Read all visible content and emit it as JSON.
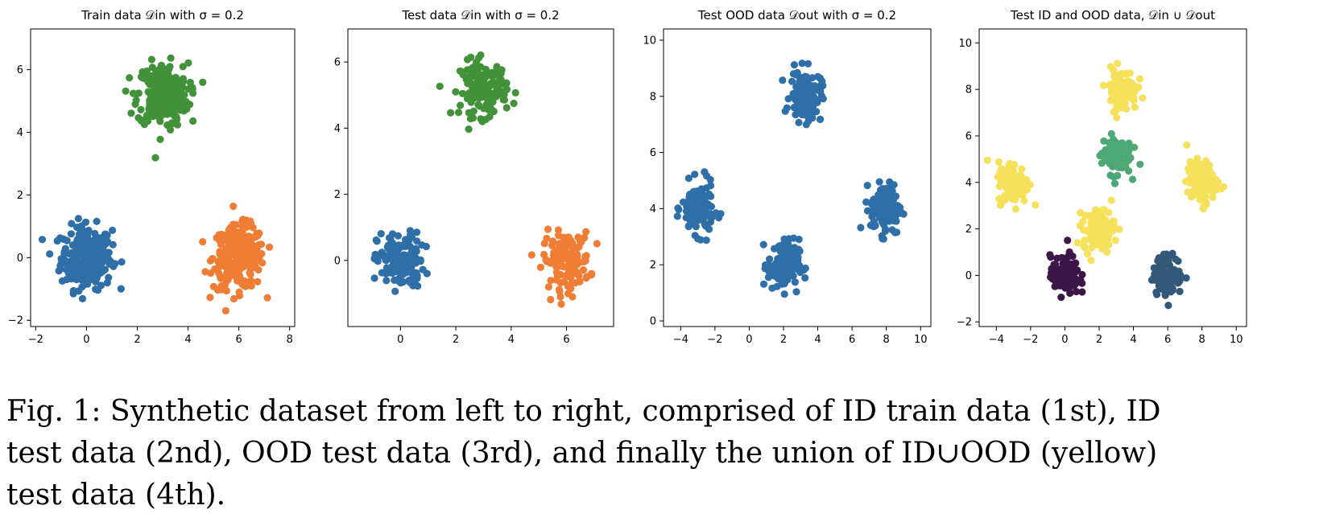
{
  "chart_data": [
    {
      "type": "scatter",
      "title": "Train data 𝒟in with σ = 0.2",
      "xlim": [
        -2.2,
        8.2
      ],
      "ylim": [
        -2.2,
        7.3
      ],
      "xticks": [
        -2,
        0,
        2,
        4,
        6,
        8
      ],
      "yticks": [
        -2,
        0,
        2,
        4,
        6
      ],
      "grid": false,
      "clusters": [
        {
          "cx": 0,
          "cy": 0,
          "color": "#2f6fa8",
          "n": 260,
          "sd": 0.5
        },
        {
          "cx": 6,
          "cy": 0,
          "color": "#ef7d35",
          "n": 260,
          "sd": 0.5
        },
        {
          "cx": 3,
          "cy": 5.2,
          "color": "#42923a",
          "n": 260,
          "sd": 0.5
        }
      ]
    },
    {
      "type": "scatter",
      "title": "Test data 𝒟in with σ = 0.2",
      "xlim": [
        -1.9,
        7.7
      ],
      "ylim": [
        -2.0,
        7.0
      ],
      "xticks": [
        0,
        2,
        4,
        6
      ],
      "yticks": [
        0,
        2,
        4,
        6
      ],
      "grid": false,
      "clusters": [
        {
          "cx": 0,
          "cy": 0,
          "color": "#2f6fa8",
          "n": 140,
          "sd": 0.42
        },
        {
          "cx": 6,
          "cy": 0,
          "color": "#ef7d35",
          "n": 140,
          "sd": 0.42
        },
        {
          "cx": 3,
          "cy": 5.2,
          "color": "#42923a",
          "n": 140,
          "sd": 0.42
        }
      ]
    },
    {
      "type": "scatter",
      "title": "Test OOD data 𝒟out with σ = 0.2",
      "xlim": [
        -5.0,
        10.6
      ],
      "ylim": [
        -0.2,
        10.4
      ],
      "xticks": [
        -4,
        -2,
        0,
        2,
        4,
        6,
        8,
        10
      ],
      "yticks": [
        0,
        2,
        4,
        6,
        8,
        10
      ],
      "grid": false,
      "clusters": [
        {
          "cx": -3,
          "cy": 4,
          "color": "#2f6fa8",
          "n": 130,
          "sd": 0.45
        },
        {
          "cx": 3.3,
          "cy": 8,
          "color": "#2f6fa8",
          "n": 130,
          "sd": 0.45
        },
        {
          "cx": 2,
          "cy": 2,
          "color": "#2f6fa8",
          "n": 130,
          "sd": 0.45
        },
        {
          "cx": 8,
          "cy": 4,
          "color": "#2f6fa8",
          "n": 130,
          "sd": 0.45
        }
      ]
    },
    {
      "type": "scatter",
      "title": "Test ID and OOD data, 𝒟in ∪ 𝒟out",
      "xlim": [
        -5.0,
        10.6
      ],
      "ylim": [
        -2.2,
        10.6
      ],
      "xticks": [
        -4,
        -2,
        0,
        2,
        4,
        6,
        8,
        10
      ],
      "yticks": [
        -2,
        0,
        2,
        4,
        6,
        8,
        10
      ],
      "grid": false,
      "clusters": [
        {
          "cx": -3,
          "cy": 4,
          "color": "#f7e05a",
          "n": 110,
          "sd": 0.45
        },
        {
          "cx": 3.3,
          "cy": 8,
          "color": "#f7e05a",
          "n": 110,
          "sd": 0.45
        },
        {
          "cx": 2,
          "cy": 2,
          "color": "#f7e05a",
          "n": 110,
          "sd": 0.45
        },
        {
          "cx": 8,
          "cy": 4,
          "color": "#f7e05a",
          "n": 110,
          "sd": 0.45
        },
        {
          "cx": 3,
          "cy": 5.2,
          "color": "#4ea876",
          "n": 110,
          "sd": 0.42
        },
        {
          "cx": 0,
          "cy": 0,
          "color": "#3b1647",
          "n": 110,
          "sd": 0.42
        },
        {
          "cx": 6,
          "cy": 0,
          "color": "#33597a",
          "n": 110,
          "sd": 0.42
        }
      ]
    }
  ],
  "caption": {
    "lines": [
      "Fig. 1: Synthetic dataset from left to right, comprised of ID train data (1st), ID",
      "test data (2nd), OOD test data (3rd), and finally the union of ID∪OOD (yellow)",
      "test data (4th)."
    ]
  }
}
